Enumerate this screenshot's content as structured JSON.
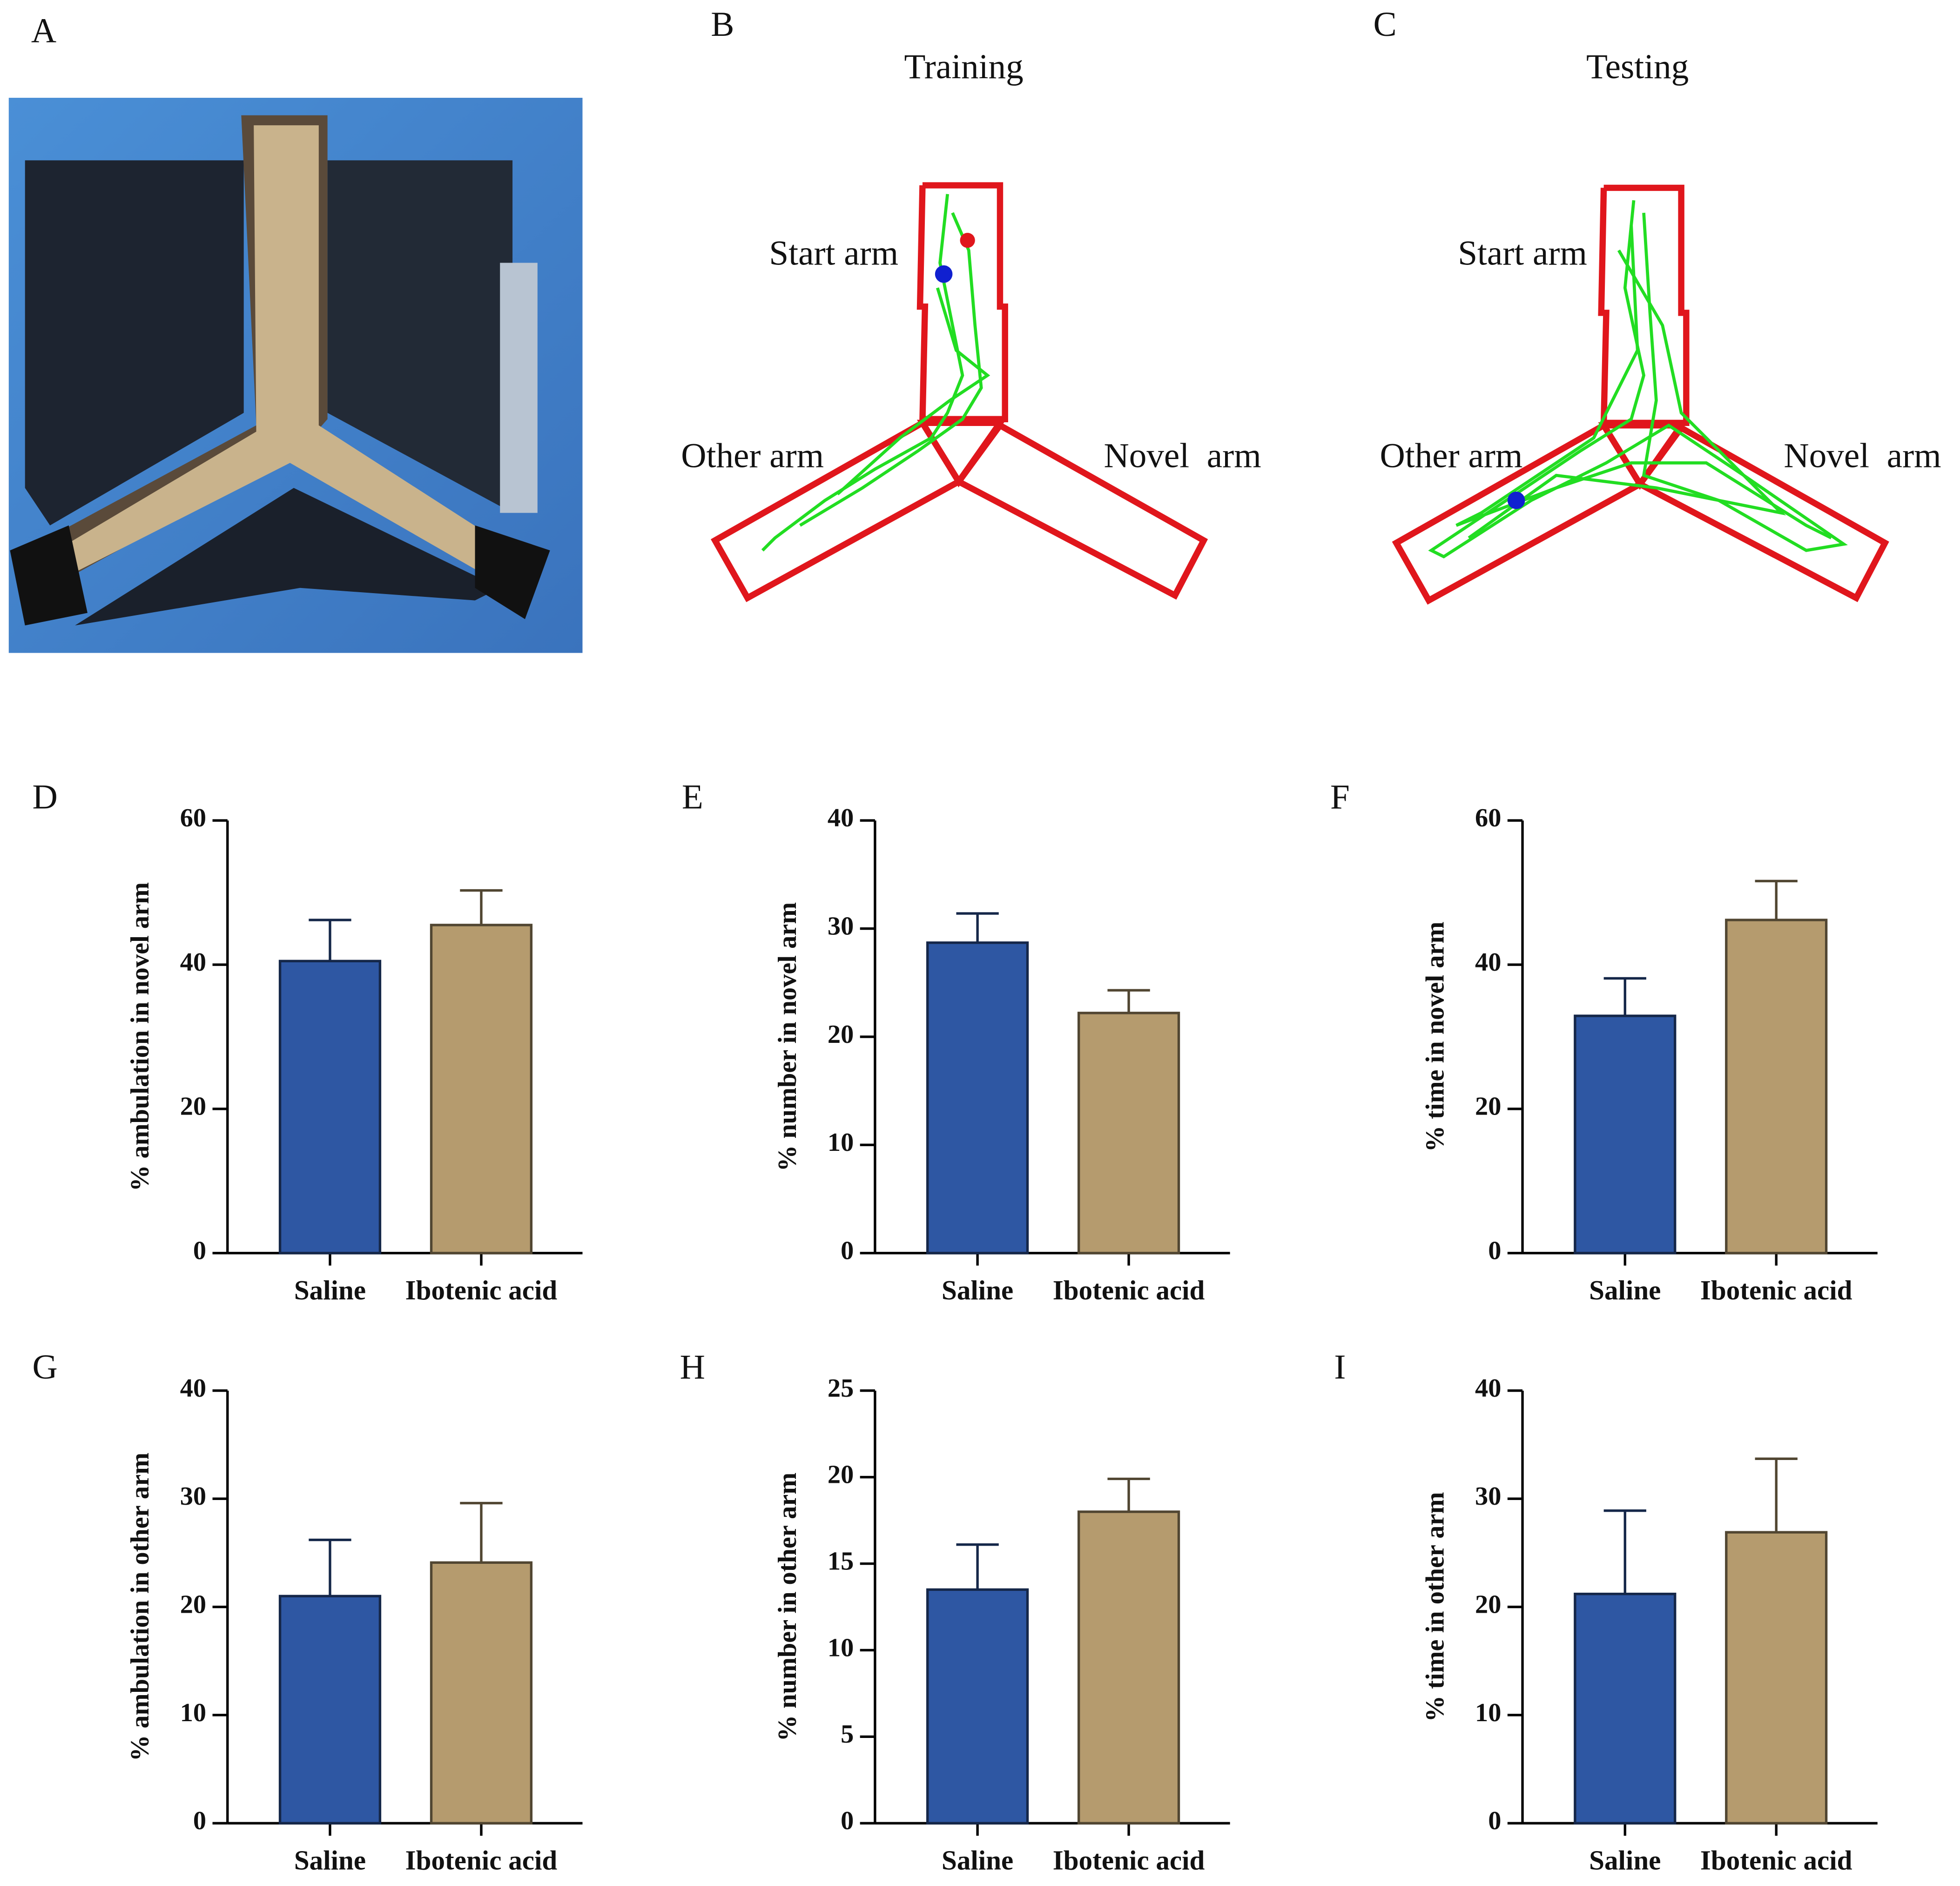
{
  "panel_A": {
    "label": "A"
  },
  "panel_B": {
    "label": "B",
    "title": "Training",
    "start_arm": "Start arm",
    "other_arm": "Other arm",
    "novel_arm": "Novel  arm"
  },
  "panel_C": {
    "label": "C",
    "title": "Testing",
    "start_arm": "Start arm",
    "other_arm": "Other arm",
    "novel_arm": "Novel  arm"
  },
  "chart_data": [
    {
      "type": "bar",
      "panel": "D",
      "y_label": "% ambulation in novel arm",
      "categories": [
        "Saline",
        "Ibotenic acid"
      ],
      "values": [
        40.5,
        45.5
      ],
      "errors": [
        5.7,
        4.8
      ],
      "colors": [
        "#2e57a3",
        "#b59b6e"
      ],
      "ylim": [
        0,
        60
      ],
      "yticks": [
        0,
        20,
        40,
        60
      ]
    },
    {
      "type": "bar",
      "panel": "E",
      "y_label": "% number in novel arm",
      "categories": [
        "Saline",
        "Ibotenic acid"
      ],
      "values": [
        28.7,
        22.2
      ],
      "errors": [
        2.7,
        2.1
      ],
      "colors": [
        "#2e57a3",
        "#b59b6e"
      ],
      "ylim": [
        0,
        40
      ],
      "yticks": [
        0,
        10,
        20,
        30,
        40
      ]
    },
    {
      "type": "bar",
      "panel": "F",
      "y_label": "% time in novel arm",
      "categories": [
        "Saline",
        "Ibotenic acid"
      ],
      "values": [
        32.9,
        46.2
      ],
      "errors": [
        5.2,
        5.4
      ],
      "colors": [
        "#2e57a3",
        "#b59b6e"
      ],
      "ylim": [
        0,
        60
      ],
      "yticks": [
        0,
        20,
        40,
        60
      ]
    },
    {
      "type": "bar",
      "panel": "G",
      "y_label": "% ambulation in other arm",
      "categories": [
        "Saline",
        "Ibotenic acid"
      ],
      "values": [
        21.0,
        24.1
      ],
      "errors": [
        5.2,
        5.5
      ],
      "colors": [
        "#2e57a3",
        "#b59b6e"
      ],
      "ylim": [
        0,
        40
      ],
      "yticks": [
        0,
        10,
        20,
        30,
        40
      ]
    },
    {
      "type": "bar",
      "panel": "H",
      "y_label": "% number in other arm",
      "categories": [
        "Saline",
        "Ibotenic acid"
      ],
      "values": [
        13.5,
        18.0
      ],
      "errors": [
        2.6,
        1.9
      ],
      "colors": [
        "#2e57a3",
        "#b59b6e"
      ],
      "ylim": [
        0,
        25
      ],
      "yticks": [
        0,
        5,
        10,
        15,
        20,
        25
      ]
    },
    {
      "type": "bar",
      "panel": "I",
      "y_label": "% time in other arm",
      "categories": [
        "Saline",
        "Ibotenic acid"
      ],
      "values": [
        21.2,
        26.9
      ],
      "errors": [
        7.7,
        6.8
      ],
      "colors": [
        "#2e57a3",
        "#b59b6e"
      ],
      "ylim": [
        0,
        40
      ],
      "yticks": [
        0,
        10,
        20,
        30,
        40
      ]
    }
  ]
}
